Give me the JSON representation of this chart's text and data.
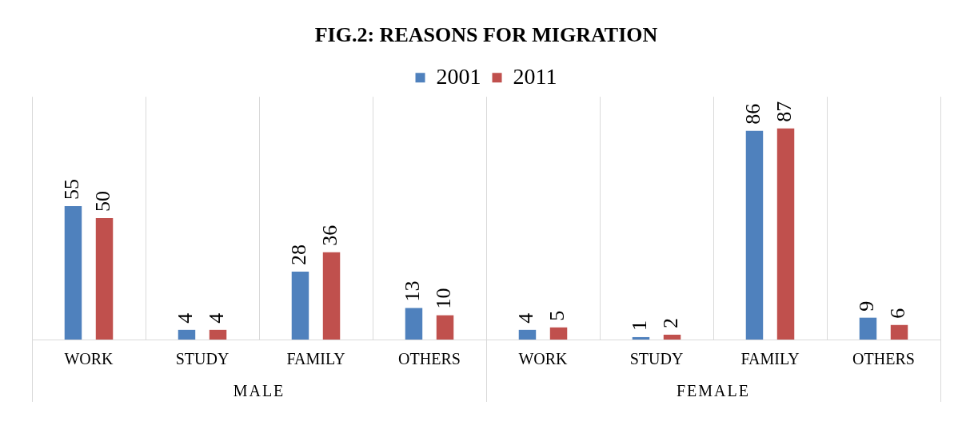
{
  "chart_data": {
    "type": "bar",
    "title": "FIG.2: REASONS FOR MIGRATION",
    "categories": [
      "WORK",
      "STUDY",
      "FAMILY",
      "OTHERS",
      "WORK",
      "STUDY",
      "FAMILY",
      "OTHERS"
    ],
    "series": [
      {
        "name": "2001",
        "color": "#4f81bd",
        "values": [
          55,
          4,
          28,
          13,
          4,
          1,
          86,
          9
        ]
      },
      {
        "name": "2011",
        "color": "#c0504d",
        "values": [
          50,
          4,
          36,
          10,
          5,
          2,
          87,
          6
        ]
      }
    ],
    "annotations": [
      "MALE",
      "FEMALE"
    ],
    "data_labels": true,
    "grid": "x",
    "legend": "top"
  }
}
